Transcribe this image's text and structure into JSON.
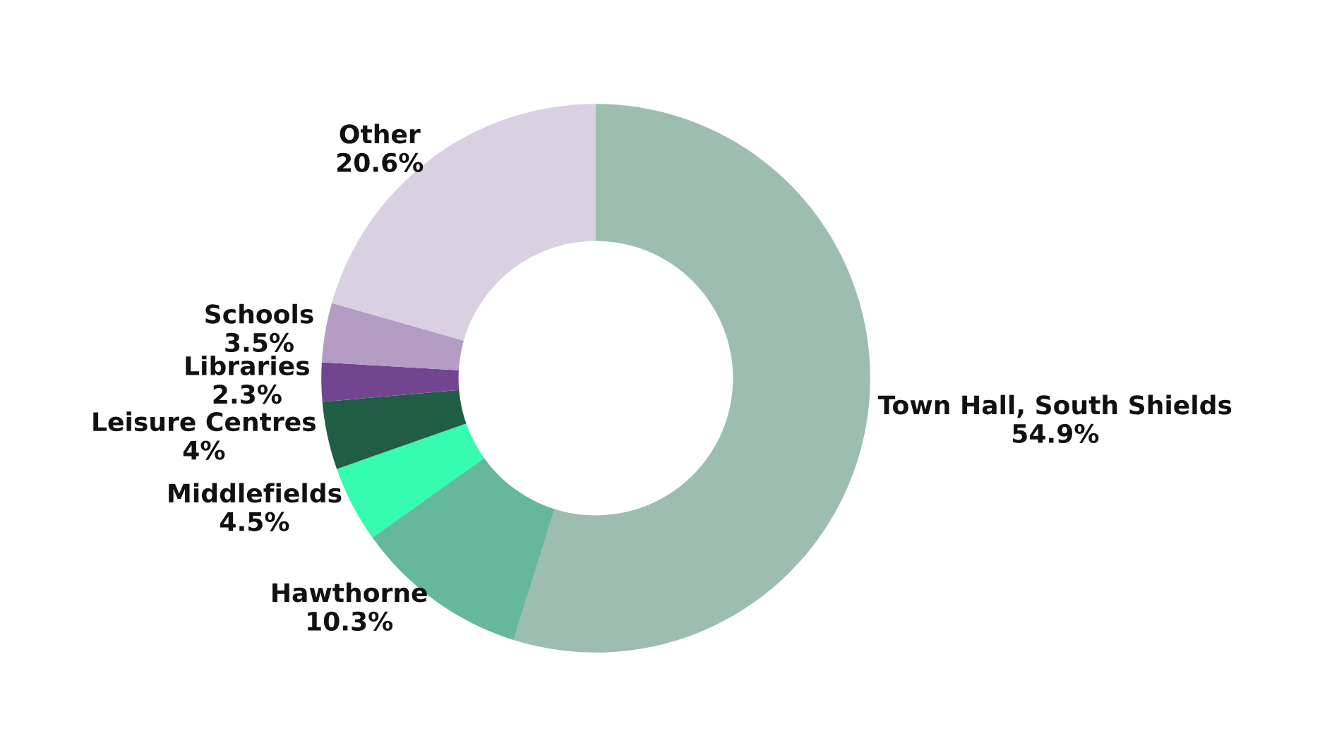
{
  "chart_data": {
    "type": "donut",
    "categories": [
      "Town Hall, South Shields",
      "Hawthorne",
      "Middlefields",
      "Leisure Centres",
      "Libraries",
      "Schools",
      "Other"
    ],
    "values": [
      54.9,
      10.3,
      4.5,
      4,
      2.3,
      3.5,
      20.6
    ],
    "value_labels": [
      "54.9%",
      "10.3%",
      "4.5%",
      "4%",
      "2.3%",
      "3.5%",
      "20.6%"
    ],
    "colors": [
      "#9dbdb0",
      "#66b89d",
      "#36fcb0",
      "#1f5e45",
      "#734590",
      "#b49cc4",
      "#d9d0e2"
    ]
  }
}
